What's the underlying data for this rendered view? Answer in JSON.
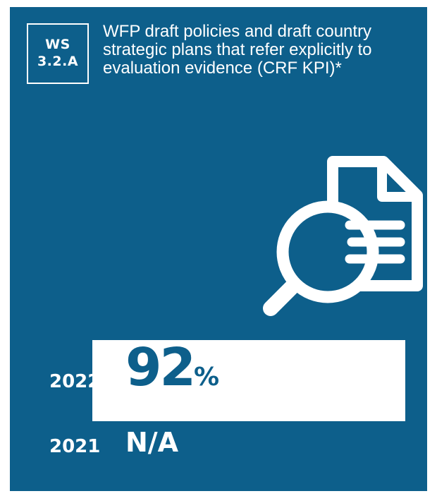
{
  "badge": {
    "line1": "WS",
    "line2": "3.2.A"
  },
  "title": "WFP draft policies and draft country strategic plans that refer explicitly to evaluation evidence (CRF KPI)*",
  "icon": "document-magnifier-icon",
  "colors": {
    "background": "#0d5f8b",
    "foreground": "#ffffff"
  },
  "rows": [
    {
      "year": "2022",
      "value_number": "92",
      "value_unit": "%",
      "progress_fraction": 1.0
    },
    {
      "year": "2021",
      "value": "N/A"
    }
  ]
}
